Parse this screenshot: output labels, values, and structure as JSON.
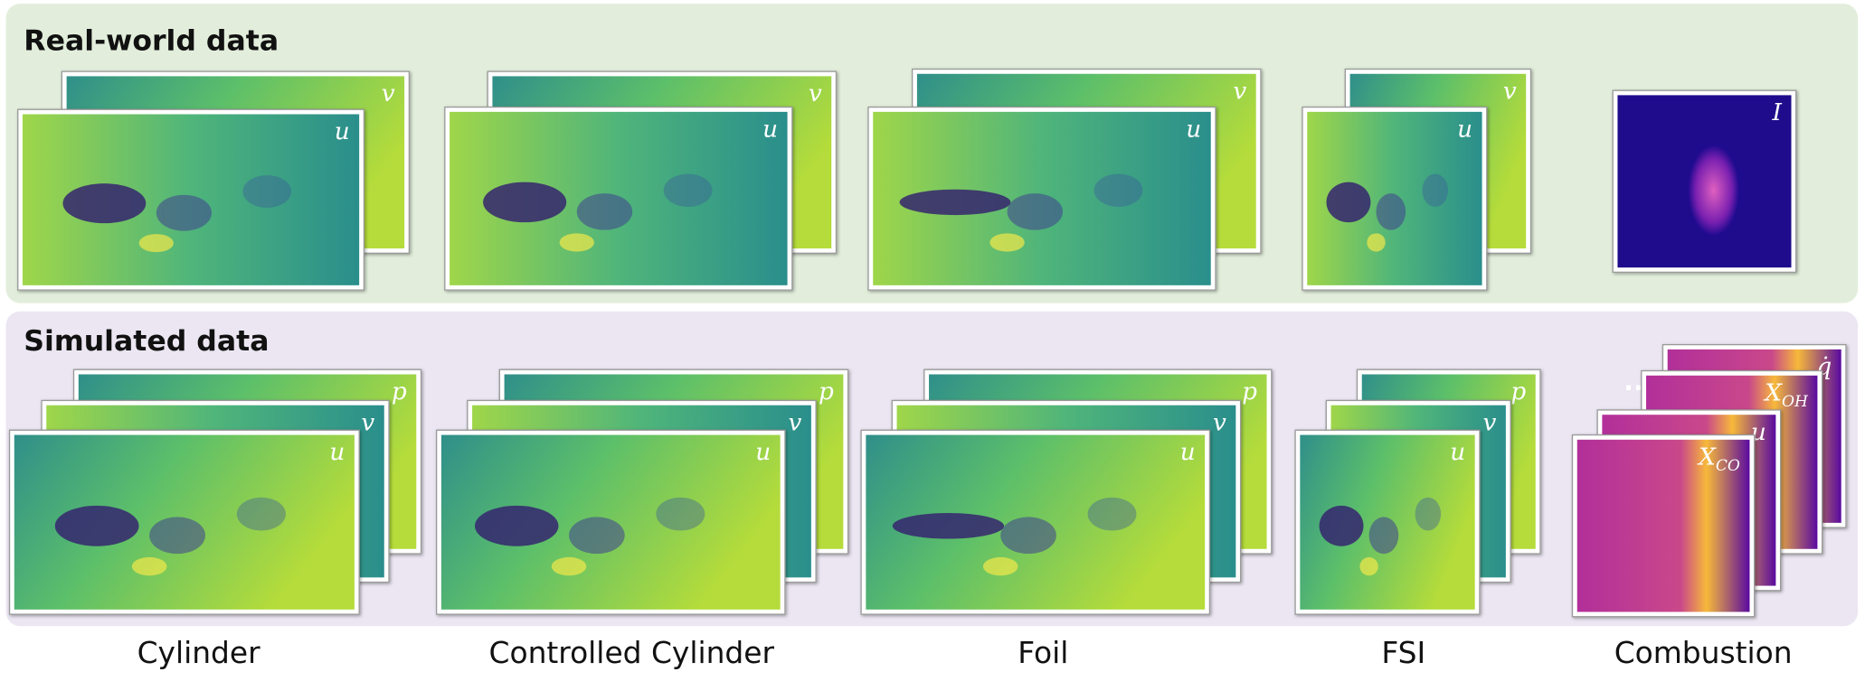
{
  "sections": [
    {
      "title": "Real-world data",
      "stacks": [
        {
          "fields": [
            "v",
            "u"
          ]
        },
        {
          "fields": [
            "v",
            "u"
          ]
        },
        {
          "fields": [
            "v",
            "u"
          ]
        },
        {
          "fields": [
            "v",
            "u"
          ]
        },
        {
          "fields": [
            "I"
          ]
        }
      ]
    },
    {
      "title": "Simulated data",
      "stacks": [
        {
          "fields": [
            "p",
            "v",
            "u"
          ]
        },
        {
          "fields": [
            "p",
            "v",
            "u"
          ]
        },
        {
          "fields": [
            "p",
            "v",
            "u"
          ]
        },
        {
          "fields": [
            "p",
            "v",
            "u"
          ]
        },
        {
          "fields": [
            "q̇",
            {
              "symbol": "X",
              "subscript": "OH"
            },
            "u",
            {
              "symbol": "X",
              "subscript": "CO"
            }
          ]
        }
      ]
    }
  ],
  "categories": [
    "Cylinder",
    "Controlled Cylinder",
    "Foil",
    "FSI",
    "Combustion"
  ]
}
